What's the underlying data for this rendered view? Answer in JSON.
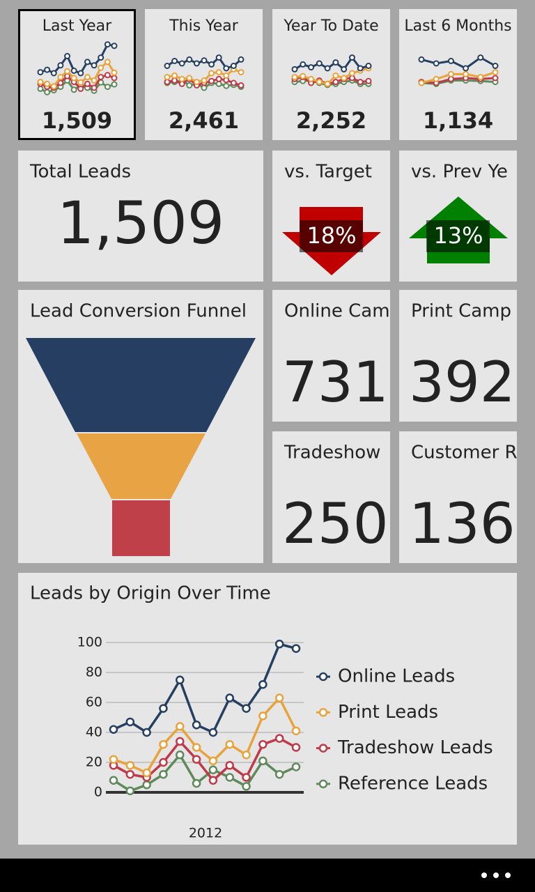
{
  "period_tiles": [
    {
      "label": "Last Year",
      "total": "1,509",
      "selected": true
    },
    {
      "label": "This Year",
      "total": "2,461",
      "sparklines": [
        [
          55,
          65,
          60,
          68,
          60,
          66,
          58,
          72,
          50,
          55,
          68
        ],
        [
          32,
          35,
          28,
          30,
          22,
          25,
          40,
          42,
          35,
          48,
          42
        ],
        [
          22,
          25,
          18,
          28,
          15,
          20,
          24,
          28,
          26,
          20,
          15
        ],
        [
          20,
          22,
          25,
          15,
          18,
          10,
          20,
          18,
          14,
          16,
          12
        ]
      ]
    },
    {
      "label": "Year To Date",
      "total": "2,252",
      "sparklines": [
        [
          48,
          58,
          52,
          60,
          50,
          62,
          48,
          72,
          50,
          55
        ],
        [
          32,
          34,
          28,
          22,
          18,
          35,
          30,
          40,
          45,
          50
        ],
        [
          28,
          32,
          20,
          25,
          18,
          22,
          28,
          30,
          22,
          24
        ],
        [
          22,
          24,
          25,
          20,
          16,
          18,
          22,
          25,
          18,
          18
        ]
      ]
    },
    {
      "label": "Last 6 Months",
      "total": "1,134",
      "sparklines": [
        [
          68,
          60,
          65,
          50,
          72,
          55
        ],
        [
          20,
          28,
          38,
          38,
          32,
          42
        ],
        [
          22,
          20,
          28,
          30,
          28,
          30
        ],
        [
          20,
          18,
          25,
          25,
          24,
          22
        ]
      ]
    }
  ],
  "total_leads": {
    "label": "Total Leads",
    "value": "1,509"
  },
  "comparisons": [
    {
      "label": "vs. Target",
      "value": "18%",
      "direction": "down",
      "color": "#c00000"
    },
    {
      "label": "vs. Prev Ye",
      "value": "13%",
      "direction": "up",
      "color": "#008000"
    }
  ],
  "funnel": {
    "title": "Lead Conversion Funnel"
  },
  "channels": [
    {
      "label": "Online Cam",
      "value": 731
    },
    {
      "label": "Print Camp",
      "value": 392
    },
    {
      "label": "Tradeshow",
      "value": 250
    },
    {
      "label": "Customer R",
      "value": 136
    }
  ],
  "chart_data": {
    "type": "line",
    "title": "Leads by Origin Over Time",
    "xlabel": "2012",
    "categories": [
      null,
      null,
      null,
      null,
      null,
      null,
      null,
      null,
      null,
      null,
      null,
      null
    ],
    "ylim": [
      0,
      100
    ],
    "yticks": [
      0,
      20,
      40,
      60,
      80,
      100
    ],
    "grid": true,
    "series": [
      {
        "name": "Online Leads",
        "color": "#243f60",
        "values": [
          42,
          47,
          40,
          56,
          75,
          45,
          40,
          63,
          56,
          72,
          99,
          96
        ]
      },
      {
        "name": "Print Leads",
        "color": "#e8a33d",
        "values": [
          22,
          18,
          13,
          32,
          44,
          30,
          21,
          32,
          25,
          51,
          63,
          41
        ]
      },
      {
        "name": "Tradeshow Leads",
        "color": "#bf3a48",
        "values": [
          18,
          12,
          10,
          20,
          34,
          22,
          8,
          18,
          10,
          32,
          36,
          30
        ]
      },
      {
        "name": "Reference Leads",
        "color": "#5e8a5a",
        "values": [
          8,
          1,
          5,
          12,
          25,
          6,
          15,
          10,
          4,
          21,
          12,
          17
        ]
      }
    ]
  }
}
